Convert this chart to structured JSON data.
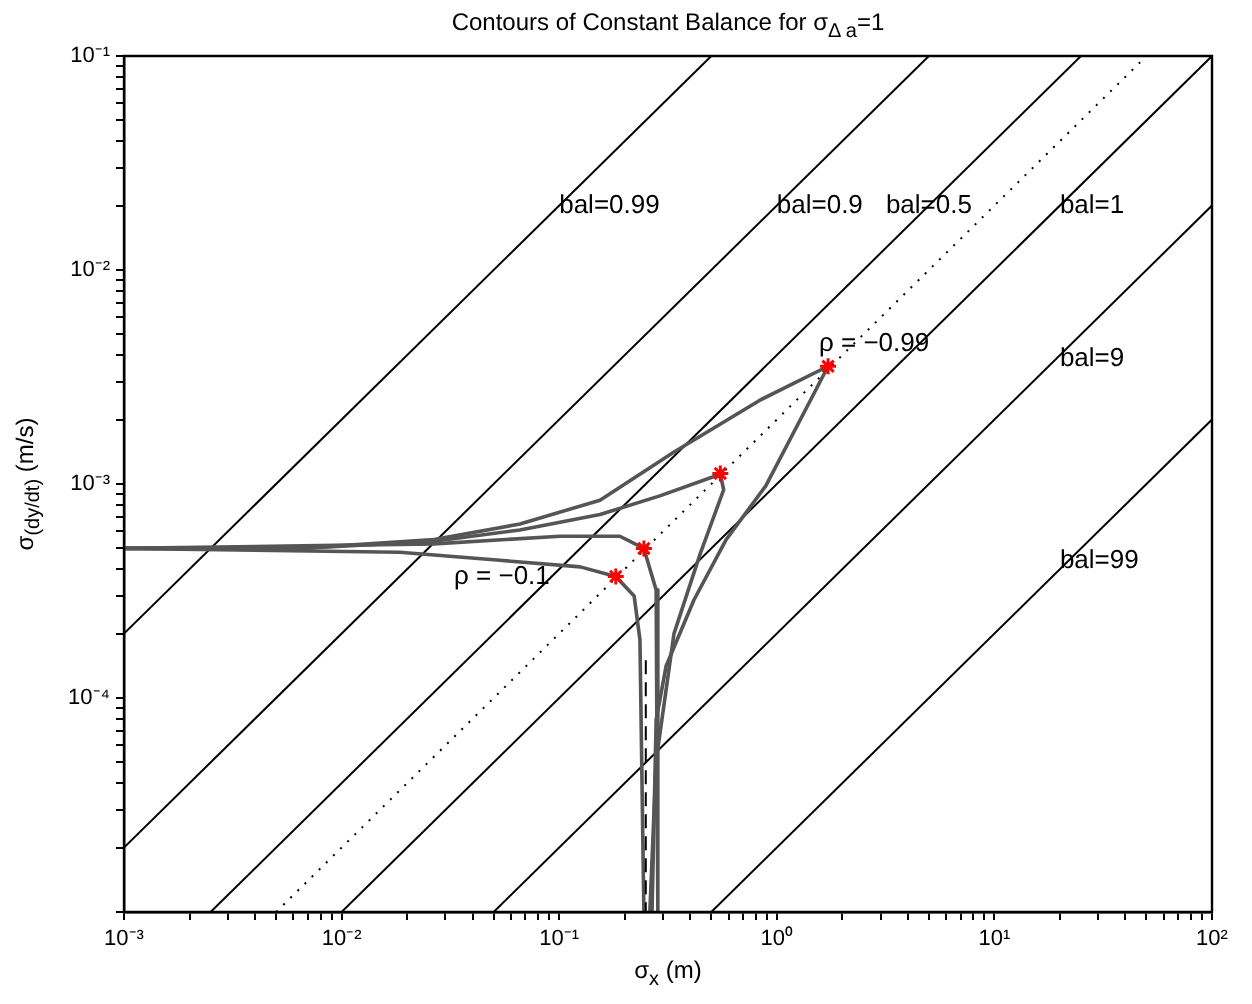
{
  "chart_data": {
    "type": "line",
    "title": "Contours of Constant Balance for σ$_{Δ a}$=1",
    "xlabel": "σ$_{x}$ (m)",
    "ylabel": "σ$_{(dy/dt)}$ (m/s)",
    "log": "xy",
    "grid": false,
    "legend": false,
    "xlim": [
      0.001,
      100
    ],
    "ylim": [
      1e-05,
      0.1
    ],
    "xticks": [
      {
        "value": 0.001,
        "label": "10⁻³"
      },
      {
        "value": 0.002,
        "label": null
      },
      {
        "value": 0.003,
        "label": null
      },
      {
        "value": 0.004,
        "label": null
      },
      {
        "value": 0.005,
        "label": null
      },
      {
        "value": 0.006,
        "label": null
      },
      {
        "value": 0.007,
        "label": null
      },
      {
        "value": 0.008,
        "label": null
      },
      {
        "value": 0.009,
        "label": null
      },
      {
        "value": 0.01,
        "label": "10⁻²"
      },
      {
        "value": 0.02,
        "label": null
      },
      {
        "value": 0.03,
        "label": null
      },
      {
        "value": 0.04,
        "label": null
      },
      {
        "value": 0.05,
        "label": null
      },
      {
        "value": 0.06,
        "label": null
      },
      {
        "value": 0.07,
        "label": null
      },
      {
        "value": 0.08,
        "label": null
      },
      {
        "value": 0.09,
        "label": null
      },
      {
        "value": 0.1,
        "label": "10⁻¹"
      },
      {
        "value": 0.2,
        "label": null
      },
      {
        "value": 0.3,
        "label": null
      },
      {
        "value": 0.4,
        "label": null
      },
      {
        "value": 0.5,
        "label": null
      },
      {
        "value": 0.6,
        "label": null
      },
      {
        "value": 0.7,
        "label": null
      },
      {
        "value": 0.8,
        "label": null
      },
      {
        "value": 0.9,
        "label": null
      },
      {
        "value": 1,
        "label": "10⁰"
      },
      {
        "value": 2,
        "label": null
      },
      {
        "value": 3,
        "label": null
      },
      {
        "value": 4,
        "label": null
      },
      {
        "value": 5,
        "label": null
      },
      {
        "value": 6,
        "label": null
      },
      {
        "value": 7,
        "label": null
      },
      {
        "value": 8,
        "label": null
      },
      {
        "value": 9,
        "label": null
      },
      {
        "value": 10,
        "label": "10¹"
      },
      {
        "value": 20,
        "label": null
      },
      {
        "value": 30,
        "label": null
      },
      {
        "value": 40,
        "label": null
      },
      {
        "value": 50,
        "label": null
      },
      {
        "value": 60,
        "label": null
      },
      {
        "value": 70,
        "label": null
      },
      {
        "value": 80,
        "label": null
      },
      {
        "value": 90,
        "label": null
      },
      {
        "value": 100,
        "label": "10²"
      }
    ],
    "yticks": [
      {
        "value": 1e-05,
        "label": null
      },
      {
        "value": 2e-05,
        "label": null
      },
      {
        "value": 3e-05,
        "label": null
      },
      {
        "value": 4e-05,
        "label": null
      },
      {
        "value": 5e-05,
        "label": null
      },
      {
        "value": 6e-05,
        "label": null
      },
      {
        "value": 7e-05,
        "label": null
      },
      {
        "value": 8e-05,
        "label": null
      },
      {
        "value": 9e-05,
        "label": null
      },
      {
        "value": 0.0001,
        "label": "10⁻⁴"
      },
      {
        "value": 0.0002,
        "label": null
      },
      {
        "value": 0.0003,
        "label": null
      },
      {
        "value": 0.0004,
        "label": null
      },
      {
        "value": 0.0005,
        "label": null
      },
      {
        "value": 0.0006,
        "label": null
      },
      {
        "value": 0.0007,
        "label": null
      },
      {
        "value": 0.0008,
        "label": null
      },
      {
        "value": 0.0009,
        "label": null
      },
      {
        "value": 0.001,
        "label": "10⁻³"
      },
      {
        "value": 0.002,
        "label": null
      },
      {
        "value": 0.003,
        "label": null
      },
      {
        "value": 0.004,
        "label": null
      },
      {
        "value": 0.005,
        "label": null
      },
      {
        "value": 0.006,
        "label": null
      },
      {
        "value": 0.007,
        "label": null
      },
      {
        "value": 0.008,
        "label": null
      },
      {
        "value": 0.009,
        "label": null
      },
      {
        "value": 0.01,
        "label": "10⁻²"
      },
      {
        "value": 0.02,
        "label": null
      },
      {
        "value": 0.03,
        "label": null
      },
      {
        "value": 0.04,
        "label": null
      },
      {
        "value": 0.05,
        "label": null
      },
      {
        "value": 0.06,
        "label": null
      },
      {
        "value": 0.07,
        "label": null
      },
      {
        "value": 0.08,
        "label": null
      },
      {
        "value": 0.09,
        "label": null
      },
      {
        "value": 0.1,
        "label": "10⁻¹"
      }
    ],
    "series": [
      {
        "type": "line",
        "color": "#000000",
        "line_style": "solid",
        "x": [
          0.001,
          0.5
        ],
        "values": [
          0.0002,
          0.1
        ]
      },
      {
        "type": "line",
        "color": "#000000",
        "line_style": "solid",
        "x": [
          0.001,
          5
        ],
        "values": [
          2e-05,
          0.1
        ]
      },
      {
        "type": "line",
        "color": "#000000",
        "line_style": "solid",
        "x": [
          0.0025,
          25
        ],
        "values": [
          1e-05,
          0.1
        ]
      },
      {
        "type": "line",
        "color": "#000000",
        "line_style": "dotted",
        "x": [
          0.005,
          50
        ],
        "values": [
          1e-05,
          0.1
        ]
      },
      {
        "type": "line",
        "color": "#000000",
        "line_style": "solid",
        "x": [
          0.01,
          100
        ],
        "values": [
          1e-05,
          0.1
        ]
      },
      {
        "type": "line",
        "color": "#000000",
        "line_style": "solid",
        "x": [
          0.05,
          100
        ],
        "values": [
          1e-05,
          0.02
        ]
      },
      {
        "type": "line",
        "color": "#000000",
        "line_style": "solid",
        "x": [
          0.5,
          100
        ],
        "values": [
          1e-05,
          0.002
        ]
      },
      {
        "type": "line",
        "color": "#555555",
        "line_style": "solid",
        "x": [
          0.001,
          0.00644,
          0.0266,
          0.066,
          0.154,
          0.337,
          0.84,
          1.72,
          1.48,
          0.89,
          0.585,
          0.416,
          0.31,
          0.279,
          0.267
        ],
        "values": [
          0.0005,
          0.0005,
          0.00055,
          0.00065,
          0.00084,
          0.00141,
          0.00247,
          0.00355,
          0.00264,
          0.00098,
          0.00055,
          0.000287,
          0.000141,
          7.9e-05,
          1e-05
        ]
      },
      {
        "type": "line",
        "color": "#555555",
        "line_style": "solid",
        "x": [
          0.001,
          0.00644,
          0.0266,
          0.066,
          0.154,
          0.29,
          0.55,
          0.57,
          0.444,
          0.337,
          0.279,
          0.261
        ],
        "values": [
          0.0005,
          0.0005,
          0.00054,
          0.00061,
          0.00072,
          0.00088,
          0.00111,
          0.00094,
          0.00047,
          0.0002,
          5.1e-05,
          1e-05
        ]
      },
      {
        "type": "line",
        "color": "#555555",
        "line_style": "solid",
        "x": [
          0.001,
          0.0266,
          0.101,
          0.19,
          0.245,
          0.279,
          0.284
        ],
        "values": [
          0.0005,
          0.000525,
          0.00057,
          0.00057,
          0.0005,
          0.00032,
          1e-05
        ]
      },
      {
        "type": "line",
        "color": "#555555",
        "line_style": "solid",
        "x": [
          0.001,
          0.0185,
          0.0534,
          0.125,
          0.182,
          0.221,
          0.235,
          0.245
        ],
        "values": [
          0.0005,
          0.00048,
          0.00044,
          0.00041,
          0.00037,
          0.0003,
          0.000187,
          1e-05
        ]
      },
      {
        "type": "line",
        "color": "#000000",
        "line_style": "dashed",
        "x": [
          0.25,
          0.25
        ],
        "values": [
          0.00015,
          1e-05
        ]
      },
      {
        "type": "scatter",
        "color": "#ff0000",
        "marker": "cross",
        "x": [
          1.72,
          0.55,
          0.245,
          0.182
        ],
        "values": [
          0.00355,
          0.00112,
          0.0005,
          0.00037
        ]
      }
    ],
    "annotations": [
      {
        "text": "bal=0.99",
        "x": 0.1,
        "y": 0.02
      },
      {
        "text": "bal=0.9",
        "x": 1,
        "y": 0.02
      },
      {
        "text": "bal=0.5",
        "x": 5,
        "y": 0.02
      },
      {
        "text": "bal=1",
        "x": 20,
        "y": 0.02
      },
      {
        "text": "bal=9",
        "x": 20,
        "y": 0.004
      },
      {
        "text": "bal=99",
        "x": 20,
        "y": 0.0004
      },
      {
        "text": "ρ = −0.99",
        "x": 1.72,
        "y": 0.00355
      },
      {
        "text": "ρ = −0.1",
        "x": 0.182,
        "y": 0.00037
      }
    ]
  }
}
